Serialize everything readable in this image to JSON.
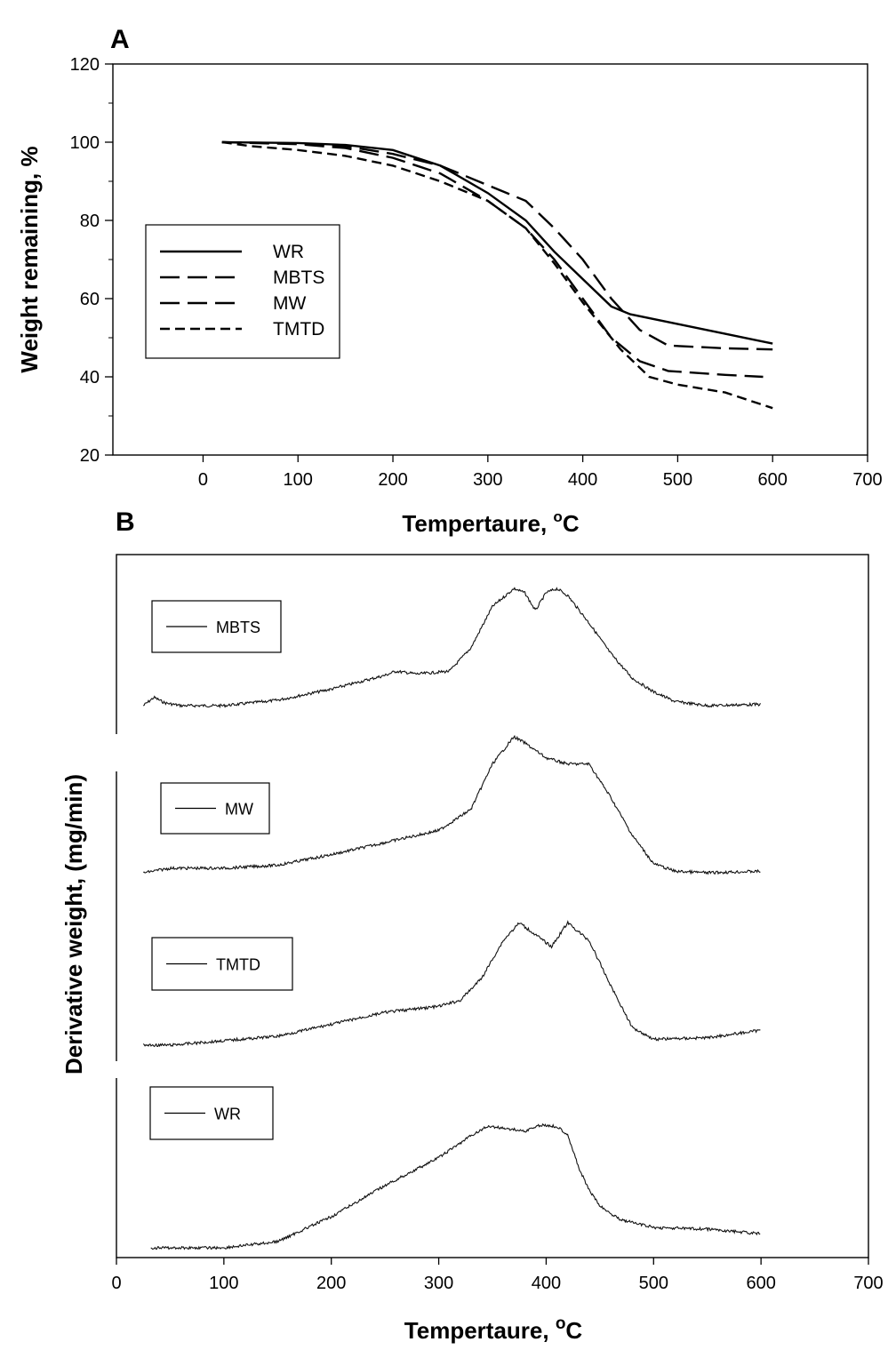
{
  "chart_data": [
    {
      "panel_label": "A",
      "type": "line",
      "xlabel": "Tempertaure, ",
      "xlabel_sup": "o",
      "xlabel_unit": "C",
      "ylabel": "Weight remaining, %",
      "xlim": [
        -95,
        700
      ],
      "ylim": [
        20,
        120
      ],
      "xticks": [
        0,
        100,
        200,
        300,
        400,
        500,
        600,
        700
      ],
      "yticks": [
        20,
        40,
        60,
        80,
        100,
        120
      ],
      "legend": {
        "placement": "center-left"
      },
      "series": [
        {
          "name": "WR",
          "dash": "solid",
          "x": [
            20,
            100,
            150,
            200,
            250,
            300,
            340,
            370,
            400,
            430,
            450,
            500,
            550,
            600
          ],
          "y": [
            100,
            99.8,
            99.3,
            98,
            94,
            87,
            80,
            72,
            65,
            58,
            56,
            53.5,
            51,
            48.5
          ]
        },
        {
          "name": "MBTS",
          "dash": "long",
          "x": [
            20,
            100,
            150,
            200,
            250,
            300,
            340,
            370,
            400,
            430,
            460,
            490,
            550,
            600
          ],
          "y": [
            100,
            99.7,
            99,
            97,
            94,
            89,
            85,
            78,
            70,
            60,
            52,
            48,
            47.3,
            47
          ]
        },
        {
          "name": "MW",
          "dash": "long",
          "x": [
            20,
            100,
            150,
            200,
            250,
            300,
            340,
            370,
            400,
            430,
            460,
            490,
            550,
            590
          ],
          "y": [
            100,
            99.5,
            98.5,
            96,
            92,
            85,
            78,
            70,
            60,
            50,
            44,
            41.5,
            40.5,
            40
          ]
        },
        {
          "name": "TMTD",
          "dash": "short",
          "x": [
            20,
            50,
            100,
            150,
            200,
            250,
            300,
            340,
            370,
            400,
            440,
            470,
            500,
            550,
            600
          ],
          "y": [
            100,
            99,
            98,
            96.5,
            94,
            90,
            85,
            78,
            69,
            59,
            47,
            40,
            38,
            36,
            32
          ]
        }
      ]
    },
    {
      "panel_label": "B",
      "type": "line",
      "xlabel": "Tempertaure, ",
      "xlabel_sup": "o",
      "xlabel_unit": "C",
      "ylabel": "Derivative weight, (mg/min)",
      "xlim": [
        0,
        700
      ],
      "xticks": [
        0,
        100,
        200,
        300,
        400,
        500,
        600,
        700
      ],
      "yaxis_ticks_shown": false,
      "note_y": "relative units; curves vertically offset",
      "series": [
        {
          "name": "MBTS",
          "x": [
            25,
            35,
            45,
            60,
            100,
            150,
            200,
            250,
            260,
            280,
            310,
            330,
            350,
            370,
            380,
            390,
            400,
            410,
            420,
            440,
            460,
            480,
            500,
            520,
            550,
            600
          ],
          "y": [
            0.0,
            0.06,
            0.02,
            0.0,
            0.0,
            0.04,
            0.12,
            0.22,
            0.25,
            0.23,
            0.25,
            0.42,
            0.72,
            0.85,
            0.82,
            0.69,
            0.82,
            0.85,
            0.8,
            0.6,
            0.38,
            0.2,
            0.1,
            0.03,
            0.0,
            0.01
          ]
        },
        {
          "name": "MW",
          "x": [
            25,
            50,
            100,
            150,
            200,
            250,
            300,
            330,
            350,
            370,
            380,
            400,
            420,
            440,
            460,
            480,
            500,
            520,
            550,
            600
          ],
          "y": [
            0.0,
            0.03,
            0.03,
            0.05,
            0.12,
            0.2,
            0.28,
            0.42,
            0.72,
            0.9,
            0.86,
            0.76,
            0.72,
            0.72,
            0.5,
            0.25,
            0.06,
            0.01,
            0.0,
            0.01
          ]
        },
        {
          "name": "TMTD",
          "x": [
            25,
            50,
            100,
            150,
            200,
            250,
            300,
            320,
            340,
            360,
            375,
            390,
            405,
            420,
            440,
            460,
            480,
            500,
            550,
            600
          ],
          "y": [
            0.0,
            0.0,
            0.03,
            0.06,
            0.14,
            0.22,
            0.26,
            0.3,
            0.45,
            0.7,
            0.82,
            0.74,
            0.66,
            0.82,
            0.7,
            0.4,
            0.12,
            0.04,
            0.05,
            0.1
          ]
        },
        {
          "name": "WR",
          "x": [
            32,
            50,
            100,
            150,
            200,
            250,
            300,
            330,
            345,
            360,
            380,
            395,
            410,
            420,
            430,
            440,
            450,
            460,
            470,
            500,
            550,
            600
          ],
          "y": [
            0.0,
            0.0,
            0.0,
            0.04,
            0.2,
            0.4,
            0.58,
            0.72,
            0.78,
            0.77,
            0.75,
            0.79,
            0.78,
            0.73,
            0.52,
            0.37,
            0.27,
            0.22,
            0.18,
            0.13,
            0.12,
            0.09
          ]
        }
      ],
      "legends": [
        {
          "label": "MBTS"
        },
        {
          "label": "MW"
        },
        {
          "label": "TMTD"
        },
        {
          "label": "WR"
        }
      ]
    }
  ]
}
